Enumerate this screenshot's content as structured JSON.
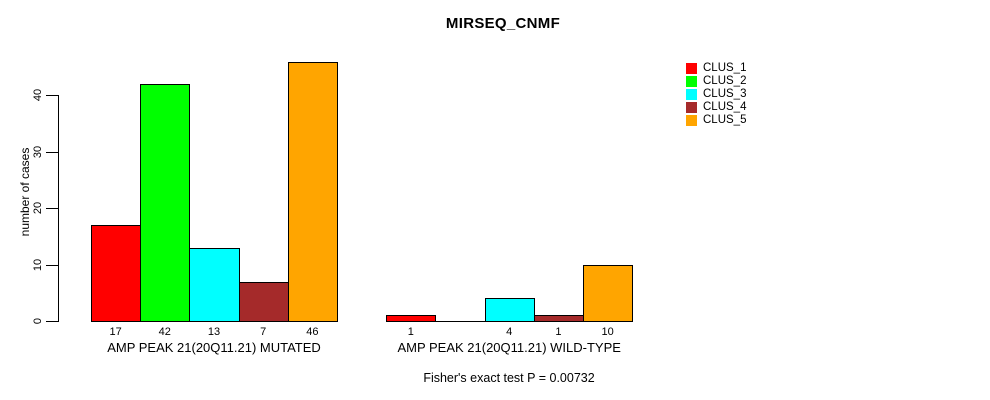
{
  "title": "MIRSEQ_CNMF",
  "chart_data": {
    "type": "bar",
    "title": "MIRSEQ_CNMF",
    "ylabel": "number of cases",
    "yticks": [
      0,
      10,
      20,
      30,
      40
    ],
    "ylim": [
      0,
      40
    ],
    "grid": false,
    "legend_position": "right",
    "series_colors": [
      "#FF0000",
      "#00FF00",
      "#00FFFF",
      "#A52A2A",
      "#FFA500"
    ],
    "groups": [
      {
        "label": "AMP PEAK 21(20Q11.21) MUTATED",
        "values": [
          17,
          42,
          13,
          7,
          46
        ],
        "bar_labels": [
          "17",
          "42",
          "13",
          "7",
          "46"
        ]
      },
      {
        "label": "AMP PEAK 21(20Q11.21) WILD-TYPE",
        "values": [
          1,
          0,
          4,
          1,
          10
        ],
        "bar_labels": [
          "1",
          "",
          "4",
          "1",
          "10"
        ]
      }
    ],
    "legend": [
      {
        "label": "CLUS_1",
        "color": "#FF0000"
      },
      {
        "label": "CLUS_2",
        "color": "#00FF00"
      },
      {
        "label": "CLUS_3",
        "color": "#00FFFF"
      },
      {
        "label": "CLUS_4",
        "color": "#A52A2A"
      },
      {
        "label": "CLUS_5",
        "color": "#FFA500"
      }
    ],
    "caption": "Fisher's exact test P = 0.00732"
  }
}
